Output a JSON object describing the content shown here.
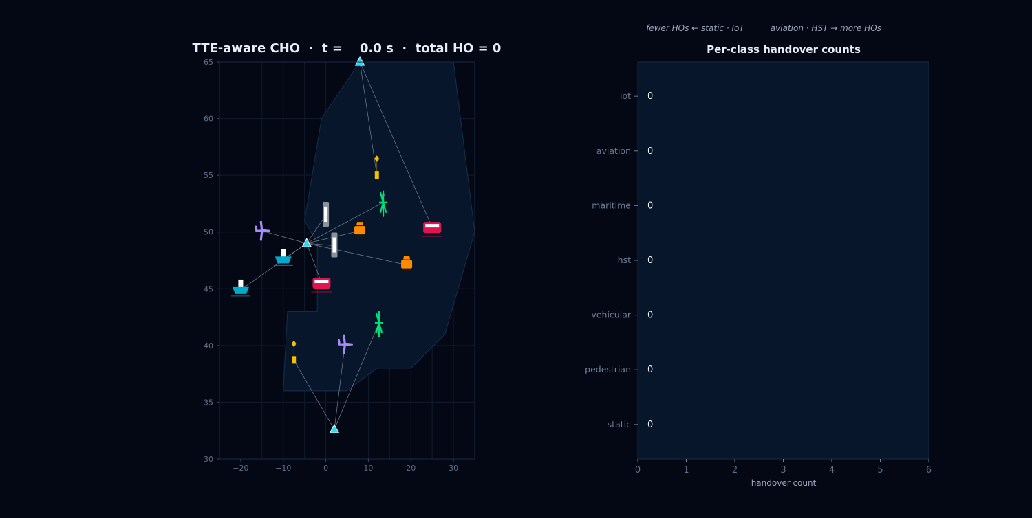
{
  "colors": {
    "background": "#030814",
    "axes_left_bg": "#030814",
    "axes_right_bg": "#07162a",
    "region_fill": "#07162a",
    "region_stroke": "#14304f",
    "grid": "#0f1c30",
    "link": "#8b95a5",
    "tower": "#2fd7ef",
    "aviation": "#a78bfa",
    "maritime": "#00aacc",
    "vehicular": "#e1144f",
    "pedestrian": "#ff8a00",
    "iot": "#f5c000",
    "hst": "#b9bec6",
    "static": "#00e07a"
  },
  "chart_data": [
    {
      "type": "scatter",
      "title": "TTE-aware CHO  ·  t =    0.0 s  ·  total HO = 0",
      "xlabel": "",
      "ylabel": "",
      "xlim": [
        -25,
        35
      ],
      "ylim": [
        30,
        65
      ],
      "xticks": [
        -20,
        -10,
        0,
        10,
        20,
        30
      ],
      "yticks": [
        30,
        35,
        40,
        45,
        50,
        55,
        60,
        65
      ],
      "grid": true,
      "coverage_region": [
        [
          -10,
          36
        ],
        [
          5,
          36
        ],
        [
          12,
          38
        ],
        [
          20,
          38
        ],
        [
          28,
          41
        ],
        [
          35,
          50
        ],
        [
          30,
          65
        ],
        [
          8,
          65
        ],
        [
          -1,
          60
        ],
        [
          -5,
          51
        ],
        [
          -2,
          49
        ],
        [
          -2,
          43
        ],
        [
          -9,
          43
        ]
      ],
      "towers": [
        {
          "id": "t1",
          "x": 8,
          "y": 65
        },
        {
          "id": "t2",
          "x": -4.5,
          "y": 49
        },
        {
          "id": "t3",
          "x": 2,
          "y": 32.6
        }
      ],
      "devices": [
        {
          "class": "aviation",
          "icon": "plane-icon",
          "x": -15,
          "y": 50.1,
          "tower": "t2"
        },
        {
          "class": "aviation",
          "icon": "plane-icon",
          "x": 4.5,
          "y": 40.1,
          "tower": "t3"
        },
        {
          "class": "maritime",
          "icon": "ship-icon",
          "x": -10,
          "y": 47.6,
          "tower": "t2"
        },
        {
          "class": "maritime",
          "icon": "ship-icon",
          "x": -20,
          "y": 44.9,
          "tower": "t2"
        },
        {
          "class": "vehicular",
          "icon": "bus-icon",
          "x": 25,
          "y": 50.4,
          "tower": "t1"
        },
        {
          "class": "vehicular",
          "icon": "bus-icon",
          "x": -1,
          "y": 45.5,
          "tower": "t2"
        },
        {
          "class": "pedestrian",
          "icon": "person-icon",
          "x": 8,
          "y": 50.1,
          "tower": "t2"
        },
        {
          "class": "pedestrian",
          "icon": "person-icon",
          "x": 19,
          "y": 47.1,
          "tower": "t2"
        },
        {
          "class": "iot",
          "icon": "sensor-icon",
          "x": 12,
          "y": 55,
          "tower": "t1"
        },
        {
          "class": "iot",
          "icon": "sensor-icon",
          "x": -7.5,
          "y": 38.7,
          "tower": "t3"
        },
        {
          "class": "hst",
          "icon": "train-icon",
          "x": 0,
          "y": 51.5,
          "tower": "t2"
        },
        {
          "class": "hst",
          "icon": "train-icon",
          "x": 2,
          "y": 48.8,
          "tower": "t2"
        },
        {
          "class": "static",
          "icon": "turbine-icon",
          "x": 13.5,
          "y": 52.6,
          "tower": "t2"
        },
        {
          "class": "static",
          "icon": "turbine-icon",
          "x": 12.5,
          "y": 42,
          "tower": "t3"
        }
      ]
    },
    {
      "type": "bar",
      "orientation": "horizontal",
      "title": "Per-class handover counts",
      "annotation": "fewer HOs ← static · IoT          aviation · HST → more HOs",
      "xlabel": "handover count",
      "ylabel": "",
      "categories": [
        "iot",
        "aviation",
        "maritime",
        "hst",
        "vehicular",
        "pedestrian",
        "static"
      ],
      "values": [
        0,
        0,
        0,
        0,
        0,
        0,
        0
      ],
      "xlim": [
        0,
        6
      ],
      "xticks": [
        0,
        1,
        2,
        3,
        4,
        5,
        6
      ],
      "grid": false
    }
  ]
}
